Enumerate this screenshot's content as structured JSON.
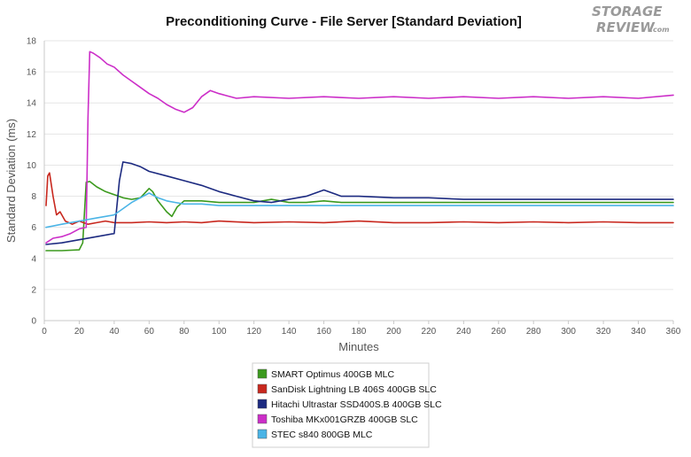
{
  "chart_data": {
    "type": "line",
    "title": "Preconditioning Curve - File Server [Standard Deviation]",
    "xlabel": "Minutes",
    "ylabel": "Standard Deviation (ms)",
    "xlim": [
      0,
      360
    ],
    "ylim": [
      0,
      18
    ],
    "xticks": [
      0,
      20,
      40,
      60,
      80,
      100,
      120,
      140,
      160,
      180,
      200,
      220,
      240,
      260,
      280,
      300,
      320,
      340,
      360
    ],
    "yticks": [
      0,
      2,
      4,
      6,
      8,
      10,
      12,
      14,
      16,
      18
    ],
    "grid": "horizontal",
    "legend_position": "bottom-center",
    "series": [
      {
        "name": "SMART Optimus 400GB MLC",
        "color": "#3c9a1e",
        "x": [
          1,
          10,
          20,
          22,
          24,
          26,
          30,
          35,
          40,
          45,
          50,
          55,
          60,
          62,
          65,
          70,
          73,
          76,
          80,
          90,
          100,
          110,
          120,
          130,
          140,
          150,
          160,
          170,
          180,
          200,
          220,
          240,
          260,
          280,
          300,
          320,
          340,
          360
        ],
        "values": [
          4.5,
          4.5,
          4.55,
          5.0,
          8.9,
          8.95,
          8.6,
          8.3,
          8.1,
          7.9,
          7.8,
          7.9,
          8.5,
          8.3,
          7.7,
          7.0,
          6.7,
          7.3,
          7.7,
          7.7,
          7.6,
          7.6,
          7.6,
          7.8,
          7.6,
          7.6,
          7.7,
          7.6,
          7.6,
          7.6,
          7.6,
          7.6,
          7.6,
          7.6,
          7.6,
          7.6,
          7.6,
          7.6
        ]
      },
      {
        "name": "SanDisk Lightning LB 406S 400GB SLC",
        "color": "#c8281e",
        "x": [
          1,
          2,
          3,
          5,
          7,
          9,
          12,
          16,
          20,
          25,
          30,
          35,
          40,
          45,
          50,
          60,
          70,
          80,
          90,
          100,
          120,
          140,
          160,
          180,
          200,
          220,
          240,
          260,
          280,
          300,
          320,
          340,
          360
        ],
        "values": [
          7.4,
          9.3,
          9.5,
          8.0,
          6.8,
          7.0,
          6.4,
          6.2,
          6.4,
          6.2,
          6.3,
          6.4,
          6.3,
          6.3,
          6.3,
          6.35,
          6.3,
          6.35,
          6.3,
          6.4,
          6.3,
          6.35,
          6.3,
          6.4,
          6.3,
          6.3,
          6.35,
          6.3,
          6.35,
          6.3,
          6.35,
          6.3,
          6.3
        ]
      },
      {
        "name": "Hitachi Ultrastar SSD400S.B 400GB SLC",
        "color": "#1c2a80",
        "x": [
          1,
          10,
          20,
          30,
          40,
          43,
          45,
          50,
          55,
          60,
          70,
          80,
          90,
          100,
          110,
          120,
          130,
          140,
          150,
          160,
          170,
          180,
          200,
          220,
          240,
          260,
          280,
          300,
          320,
          340,
          360
        ],
        "values": [
          4.9,
          5.0,
          5.2,
          5.4,
          5.6,
          9.0,
          10.2,
          10.1,
          9.9,
          9.6,
          9.3,
          9.0,
          8.7,
          8.3,
          8.0,
          7.7,
          7.6,
          7.8,
          8.0,
          8.4,
          8.0,
          8.0,
          7.9,
          7.9,
          7.8,
          7.8,
          7.8,
          7.8,
          7.8,
          7.8,
          7.8
        ]
      },
      {
        "name": "Toshiba MKx001GRZB 400GB SLC",
        "color": "#cc2ec8",
        "x": [
          1,
          5,
          10,
          15,
          20,
          24,
          25,
          26,
          28,
          32,
          36,
          40,
          45,
          50,
          55,
          60,
          65,
          70,
          75,
          80,
          85,
          90,
          95,
          100,
          110,
          120,
          140,
          160,
          180,
          200,
          220,
          240,
          260,
          280,
          300,
          320,
          340,
          360
        ],
        "values": [
          5.0,
          5.3,
          5.4,
          5.6,
          5.9,
          6.0,
          13.0,
          17.3,
          17.2,
          16.9,
          16.5,
          16.3,
          15.8,
          15.4,
          15.0,
          14.6,
          14.3,
          13.9,
          13.6,
          13.4,
          13.7,
          14.4,
          14.8,
          14.6,
          14.3,
          14.4,
          14.3,
          14.4,
          14.3,
          14.4,
          14.3,
          14.4,
          14.3,
          14.4,
          14.3,
          14.4,
          14.3,
          14.5
        ]
      },
      {
        "name": "STEC s840 800GB MLC",
        "color": "#4ab4e6",
        "x": [
          1,
          10,
          20,
          30,
          40,
          45,
          50,
          55,
          60,
          65,
          70,
          75,
          80,
          90,
          100,
          110,
          120,
          130,
          140,
          160,
          180,
          200,
          220,
          240,
          260,
          280,
          300,
          320,
          340,
          360
        ],
        "values": [
          6.0,
          6.2,
          6.4,
          6.6,
          6.8,
          7.2,
          7.6,
          7.9,
          8.2,
          7.9,
          7.7,
          7.6,
          7.5,
          7.5,
          7.4,
          7.4,
          7.4,
          7.4,
          7.4,
          7.4,
          7.4,
          7.4,
          7.4,
          7.4,
          7.4,
          7.4,
          7.4,
          7.4,
          7.4,
          7.4
        ]
      }
    ]
  },
  "logo": {
    "line1": "STORAGE",
    "line2": "REVIEW",
    "suffix": ".com"
  }
}
